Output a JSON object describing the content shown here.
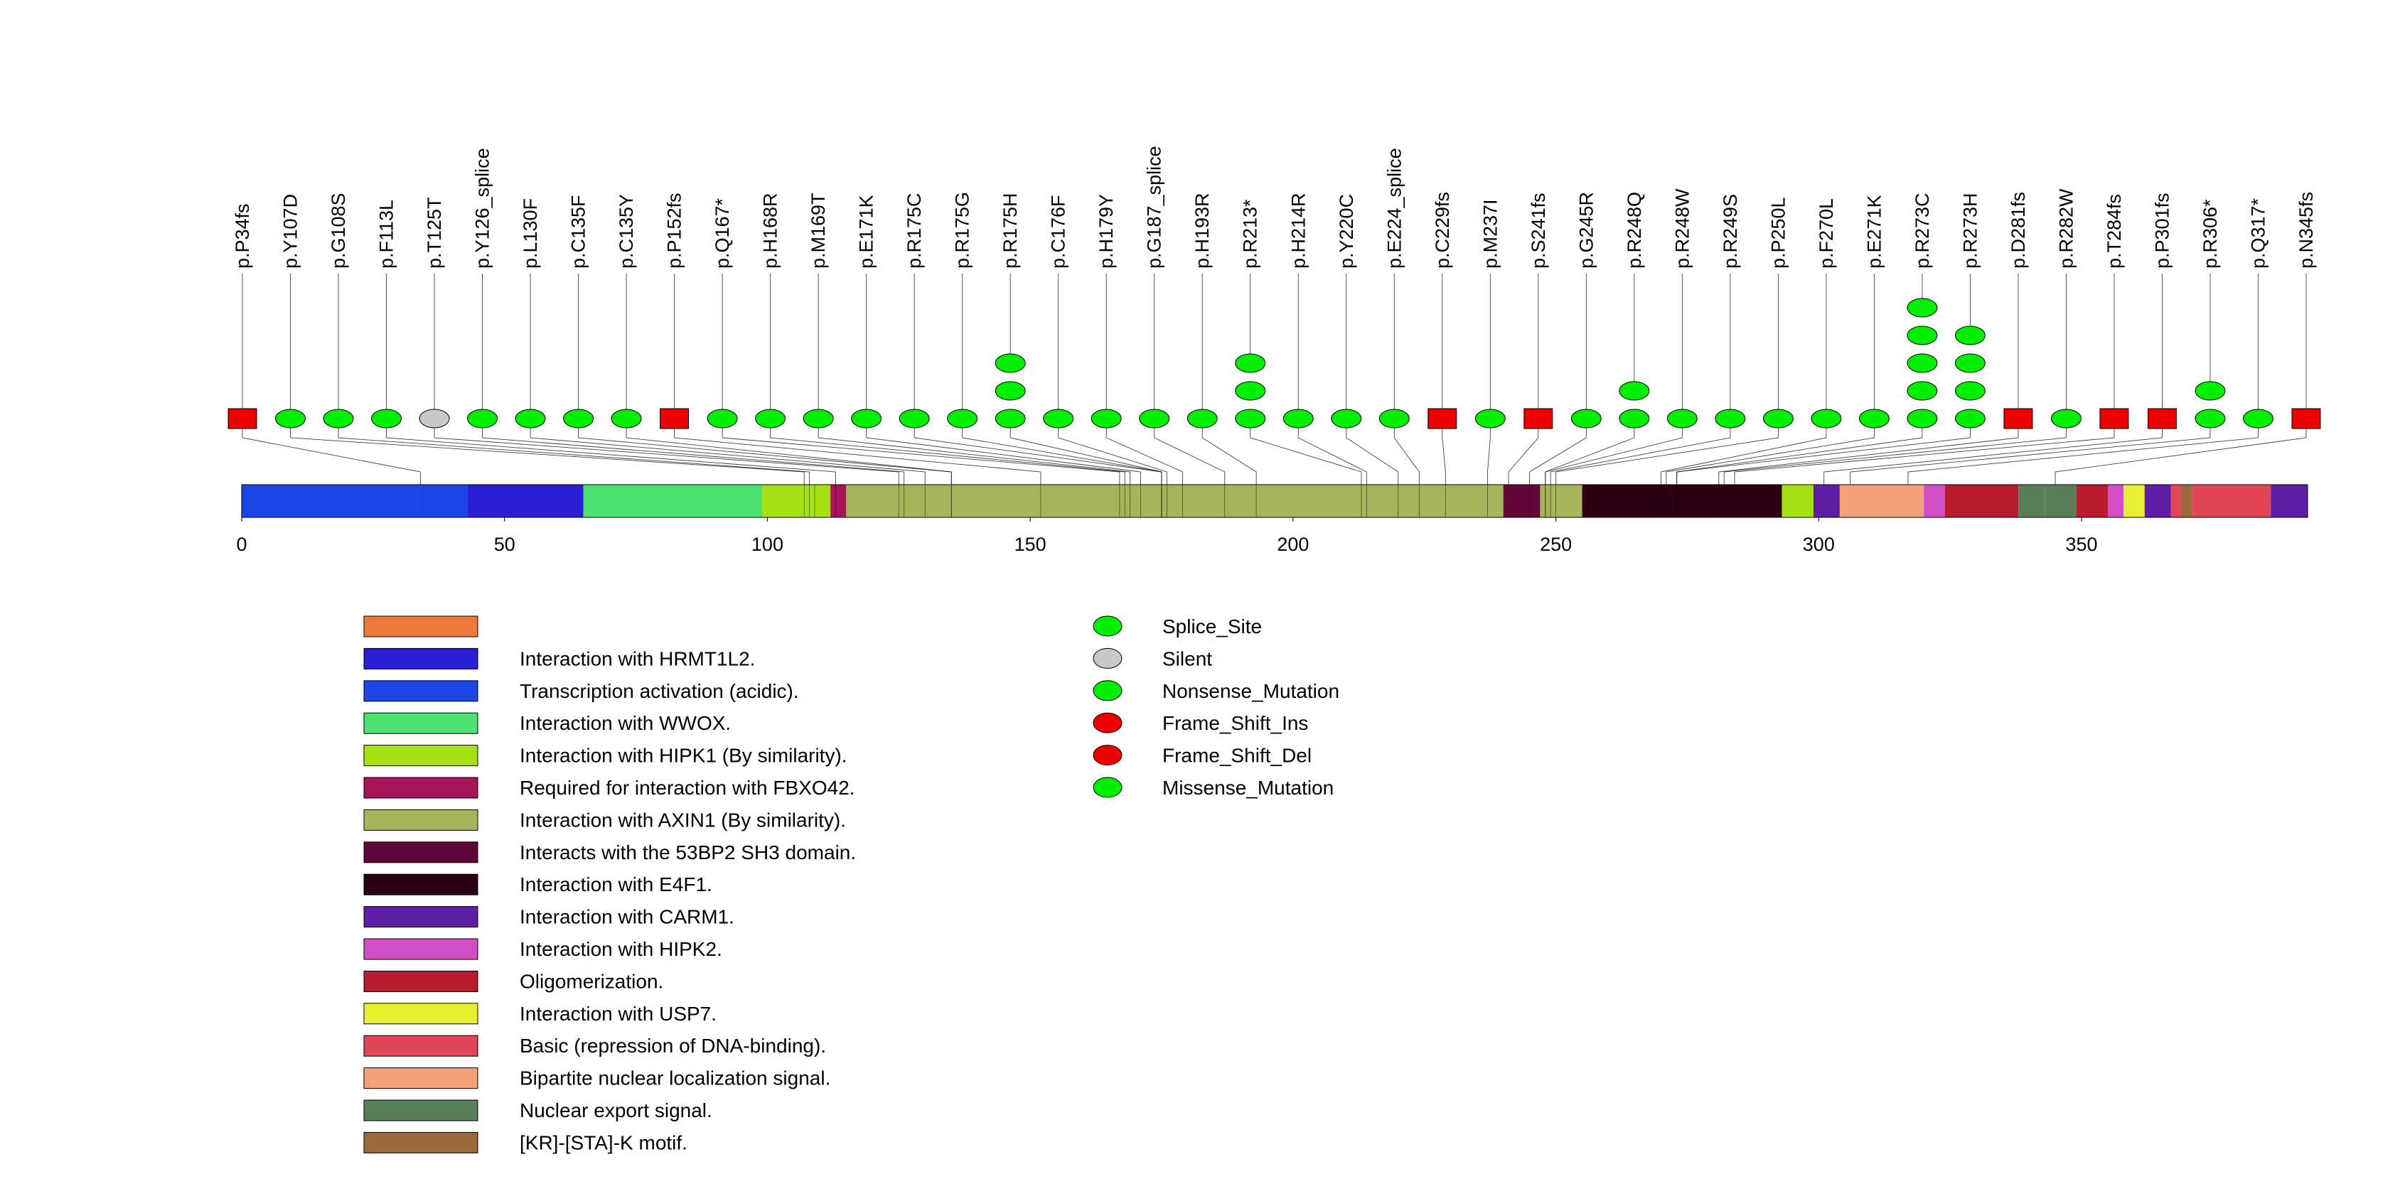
{
  "chart_data": {
    "type": "lollipop",
    "protein_length": 393,
    "axis": {
      "min": 0,
      "max": 393,
      "ticks": [
        0,
        50,
        100,
        150,
        200,
        250,
        300,
        350
      ],
      "tick_labels": [
        "0",
        "50",
        "100",
        "150",
        "200",
        "250",
        "300",
        "350"
      ]
    },
    "mutation_colors": {
      "Splice_Site": "#00ee00",
      "Silent": "#c8c8c8",
      "Nonsense_Mutation": "#00ee00",
      "Frame_Shift_Ins": "#ee0000",
      "Frame_Shift_Del": "#ee0000",
      "Missense_Mutation": "#00ee00"
    },
    "mutations": [
      {
        "label": "p.P34fs",
        "pos": 34,
        "count": 1,
        "type": "Frame_Shift_Del"
      },
      {
        "label": "p.Y107D",
        "pos": 107,
        "count": 1,
        "type": "Missense_Mutation"
      },
      {
        "label": "p.G108S",
        "pos": 108,
        "count": 1,
        "type": "Missense_Mutation"
      },
      {
        "label": "p.F113L",
        "pos": 113,
        "count": 1,
        "type": "Missense_Mutation"
      },
      {
        "label": "p.T125T",
        "pos": 125,
        "count": 1,
        "type": "Silent"
      },
      {
        "label": "p.Y126_splice",
        "pos": 126,
        "count": 1,
        "type": "Splice_Site"
      },
      {
        "label": "p.L130F",
        "pos": 130,
        "count": 1,
        "type": "Missense_Mutation"
      },
      {
        "label": "p.C135F",
        "pos": 135,
        "count": 1,
        "type": "Missense_Mutation"
      },
      {
        "label": "p.C135Y",
        "pos": 135,
        "count": 1,
        "type": "Missense_Mutation"
      },
      {
        "label": "p.P152fs",
        "pos": 152,
        "count": 1,
        "type": "Frame_Shift_Del"
      },
      {
        "label": "p.Q167*",
        "pos": 167,
        "count": 1,
        "type": "Nonsense_Mutation"
      },
      {
        "label": "p.H168R",
        "pos": 168,
        "count": 1,
        "type": "Missense_Mutation"
      },
      {
        "label": "p.M169T",
        "pos": 169,
        "count": 1,
        "type": "Missense_Mutation"
      },
      {
        "label": "p.E171K",
        "pos": 171,
        "count": 1,
        "type": "Missense_Mutation"
      },
      {
        "label": "p.R175C",
        "pos": 175,
        "count": 1,
        "type": "Missense_Mutation"
      },
      {
        "label": "p.R175G",
        "pos": 175,
        "count": 1,
        "type": "Missense_Mutation"
      },
      {
        "label": "p.R175H",
        "pos": 175,
        "count": 3,
        "type": "Missense_Mutation"
      },
      {
        "label": "p.C176F",
        "pos": 176,
        "count": 1,
        "type": "Missense_Mutation"
      },
      {
        "label": "p.H179Y",
        "pos": 179,
        "count": 1,
        "type": "Missense_Mutation"
      },
      {
        "label": "p.G187_splice",
        "pos": 187,
        "count": 1,
        "type": "Splice_Site"
      },
      {
        "label": "p.H193R",
        "pos": 193,
        "count": 1,
        "type": "Missense_Mutation"
      },
      {
        "label": "p.R213*",
        "pos": 213,
        "count": 3,
        "type": "Nonsense_Mutation"
      },
      {
        "label": "p.H214R",
        "pos": 214,
        "count": 1,
        "type": "Missense_Mutation"
      },
      {
        "label": "p.Y220C",
        "pos": 220,
        "count": 1,
        "type": "Missense_Mutation"
      },
      {
        "label": "p.E224_splice",
        "pos": 224,
        "count": 1,
        "type": "Splice_Site"
      },
      {
        "label": "p.C229fs",
        "pos": 229,
        "count": 1,
        "type": "Frame_Shift_Del"
      },
      {
        "label": "p.M237I",
        "pos": 237,
        "count": 1,
        "type": "Missense_Mutation"
      },
      {
        "label": "p.S241fs",
        "pos": 241,
        "count": 1,
        "type": "Frame_Shift_Del"
      },
      {
        "label": "p.G245R",
        "pos": 245,
        "count": 1,
        "type": "Missense_Mutation"
      },
      {
        "label": "p.R248Q",
        "pos": 248,
        "count": 2,
        "type": "Missense_Mutation"
      },
      {
        "label": "p.R248W",
        "pos": 248,
        "count": 1,
        "type": "Missense_Mutation"
      },
      {
        "label": "p.R249S",
        "pos": 249,
        "count": 1,
        "type": "Missense_Mutation"
      },
      {
        "label": "p.P250L",
        "pos": 250,
        "count": 1,
        "type": "Missense_Mutation"
      },
      {
        "label": "p.F270L",
        "pos": 270,
        "count": 1,
        "type": "Missense_Mutation"
      },
      {
        "label": "p.E271K",
        "pos": 271,
        "count": 1,
        "type": "Missense_Mutation"
      },
      {
        "label": "p.R273C",
        "pos": 273,
        "count": 5,
        "type": "Missense_Mutation"
      },
      {
        "label": "p.R273H",
        "pos": 273,
        "count": 4,
        "type": "Missense_Mutation"
      },
      {
        "label": "p.D281fs",
        "pos": 281,
        "count": 1,
        "type": "Frame_Shift_Del"
      },
      {
        "label": "p.R282W",
        "pos": 282,
        "count": 1,
        "type": "Missense_Mutation"
      },
      {
        "label": "p.T284fs",
        "pos": 284,
        "count": 1,
        "type": "Frame_Shift_Del"
      },
      {
        "label": "p.P301fs",
        "pos": 301,
        "count": 1,
        "type": "Frame_Shift_Ins"
      },
      {
        "label": "p.R306*",
        "pos": 306,
        "count": 2,
        "type": "Nonsense_Mutation"
      },
      {
        "label": "p.Q317*",
        "pos": 317,
        "count": 1,
        "type": "Nonsense_Mutation"
      },
      {
        "label": "p.N345fs",
        "pos": 345,
        "count": 1,
        "type": "Frame_Shift_Del"
      }
    ],
    "domain_legend": [
      {
        "label": "",
        "color": "#ee7a3a"
      },
      {
        "label": "Interaction with HRMT1L2.",
        "color": "#2a1fd6"
      },
      {
        "label": "Transcription activation (acidic).",
        "color": "#1a46e6"
      },
      {
        "label": "Interaction with WWOX.",
        "color": "#4ee070"
      },
      {
        "label": "Interaction with HIPK1 (By similarity).",
        "color": "#a6e015"
      },
      {
        "label": "Required for interaction with FBXO42.",
        "color": "#a8145a"
      },
      {
        "label": "Interaction with AXIN1 (By similarity).",
        "color": "#a6b45a"
      },
      {
        "label": "Interacts with the 53BP2 SH3 domain.",
        "color": "#62063a"
      },
      {
        "label": "Interaction with E4F1.",
        "color": "#2c0012"
      },
      {
        "label": "Interaction with CARM1.",
        "color": "#5e1ea6"
      },
      {
        "label": "Interaction with HIPK2.",
        "color": "#d04ec6"
      },
      {
        "label": "Oligomerization.",
        "color": "#b81c30"
      },
      {
        "label": "Interaction with USP7.",
        "color": "#e6f030"
      },
      {
        "label": "Basic (repression of DNA-binding).",
        "color": "#e04656"
      },
      {
        "label": "Bipartite nuclear localization signal.",
        "color": "#f4a27c"
      },
      {
        "label": "Nuclear export signal.",
        "color": "#5a7e58"
      },
      {
        "label": "[KR]-[STA]-K motif.",
        "color": "#9a6a3a"
      }
    ],
    "domains": [
      {
        "start": 0,
        "end": 33,
        "color": "#1a46e6"
      },
      {
        "start": 33,
        "end": 43,
        "color": "#1a46e6"
      },
      {
        "start": 43,
        "end": 65,
        "color": "#2a1fd6"
      },
      {
        "start": 65,
        "end": 99,
        "color": "#4ee070"
      },
      {
        "start": 99,
        "end": 112,
        "color": "#a6e015"
      },
      {
        "start": 112,
        "end": 115,
        "color": "#a8145a"
      },
      {
        "start": 115,
        "end": 240,
        "color": "#a6b45a"
      },
      {
        "start": 240,
        "end": 247,
        "color": "#62063a"
      },
      {
        "start": 247,
        "end": 255,
        "color": "#a6b45a"
      },
      {
        "start": 255,
        "end": 293,
        "color": "#2c0012"
      },
      {
        "start": 293,
        "end": 299,
        "color": "#a6e015"
      },
      {
        "start": 299,
        "end": 304,
        "color": "#5e1ea6"
      },
      {
        "start": 304,
        "end": 320,
        "color": "#f4a27c"
      },
      {
        "start": 320,
        "end": 324,
        "color": "#d04ec6"
      },
      {
        "start": 324,
        "end": 338,
        "color": "#b81c30"
      },
      {
        "start": 338,
        "end": 343,
        "color": "#5a7e58"
      },
      {
        "start": 343,
        "end": 349,
        "color": "#5a7e58"
      },
      {
        "start": 349,
        "end": 355,
        "color": "#b81c30"
      },
      {
        "start": 355,
        "end": 358,
        "color": "#d04ec6"
      },
      {
        "start": 358,
        "end": 362,
        "color": "#e6f030"
      },
      {
        "start": 362,
        "end": 367,
        "color": "#5e1ea6"
      },
      {
        "start": 367,
        "end": 369,
        "color": "#e04656"
      },
      {
        "start": 369,
        "end": 371,
        "color": "#9a6a3a"
      },
      {
        "start": 371,
        "end": 386,
        "color": "#e04656"
      },
      {
        "start": 386,
        "end": 393,
        "color": "#5e1ea6"
      }
    ],
    "internal_boundaries": [
      107,
      108,
      109,
      113,
      125,
      126,
      130,
      135,
      135,
      152,
      167,
      168,
      169,
      171,
      175,
      175,
      175,
      176,
      179,
      187,
      193,
      213,
      214,
      220,
      224,
      229,
      237,
      245,
      248,
      248,
      249,
      250,
      270,
      271,
      273,
      273,
      281,
      282,
      284
    ],
    "mutation_legend": [
      "Splice_Site",
      "Silent",
      "Nonsense_Mutation",
      "Frame_Shift_Ins",
      "Frame_Shift_Del",
      "Missense_Mutation"
    ]
  }
}
